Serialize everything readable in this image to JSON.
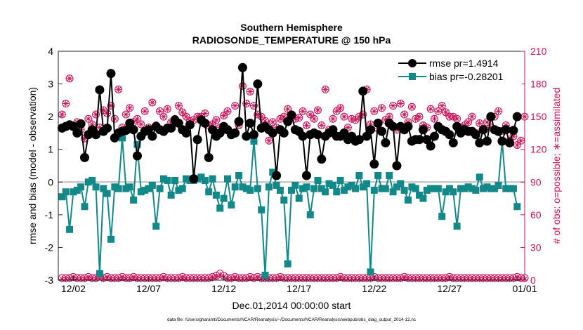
{
  "chart_data": {
    "type": "line",
    "title": "Southern Hemisphere",
    "subtitle": "RADIOSONDE_TEMPERATURE @ 150 hPa",
    "xlabel": "Dec.01,2014 00:00:00 start",
    "ylabel": "rmse and bias (model - observation)",
    "ylabel_right": "# of obs: o=possible; ∗=assimilated",
    "footnote": "data file: /Users/gharamti/Documents/NCAR/Reanalysis/~/Documents/NCAR/Reanalysis/webpub/obs_diag_output_2014-12.nc",
    "xlim": [
      1,
      32
    ],
    "ylim": [
      -3,
      4
    ],
    "ylim_right": [
      0,
      210
    ],
    "x_ticks": [
      {
        "value": 2,
        "label": "12/02"
      },
      {
        "value": 7,
        "label": "12/07"
      },
      {
        "value": 12,
        "label": "12/12"
      },
      {
        "value": 17,
        "label": "12/17"
      },
      {
        "value": 22,
        "label": "12/22"
      },
      {
        "value": 27,
        "label": "12/27"
      },
      {
        "value": 32,
        "label": "01/01"
      }
    ],
    "y_ticks": [
      -3,
      -2,
      -1,
      0,
      1,
      2,
      3,
      4
    ],
    "y_ticks_right": [
      0,
      30,
      60,
      90,
      120,
      150,
      180,
      210
    ],
    "colors": {
      "rmse": "#000000",
      "bias": "#138888",
      "obs": "#c8125a",
      "zero_line": "#bdbdbd",
      "axis_right": "#c8125a"
    },
    "series": [
      {
        "name": "rmse",
        "legend": "rmse pr=1.4914",
        "x_start": 1.25,
        "x_step": 0.25,
        "values": [
          1.65,
          1.7,
          1.75,
          1.7,
          1.5,
          1.78,
          0.75,
          1.45,
          1.6,
          1.45,
          2.82,
          1.55,
          1.65,
          3.32,
          1.35,
          1.5,
          1.55,
          1.58,
          1.8,
          1.6,
          0.8,
          1.4,
          1.55,
          1.6,
          1.4,
          1.7,
          1.6,
          1.55,
          1.65,
          1.65,
          1.9,
          1.8,
          1.6,
          1.5,
          1.75,
          0.1,
          1.3,
          1.9,
          1.8,
          0.75,
          1.6,
          1.4,
          1.5,
          1.7,
          1.6,
          1.45,
          1.5,
          1.85,
          3.5,
          1.4,
          1.8,
          1.45,
          3.0,
          1.65,
          1.7,
          1.6,
          1.5,
          0.2,
          1.6,
          1.5,
          1.85,
          2.05,
          1.6,
          1.55,
          1.4,
          0.2,
          1.45,
          1.5,
          1.45,
          0.7,
          1.4,
          1.5,
          1.6,
          1.4,
          1.4,
          1.5,
          1.3,
          1.4,
          1.25,
          1.3,
          2.78,
          1.4,
          1.6,
          0.55,
          1.8,
          1.55,
          1.2,
          1.8,
          1.7,
          0.5,
          1.7,
          1.6,
          1.7,
          1.25,
          1.3,
          1.3,
          1.6,
          1.3,
          1.1,
          1.4,
          1.7,
          1.6,
          1.55,
          1.45,
          1.2,
          1.7,
          1.5,
          1.6,
          1.55,
          1.55,
          1.45,
          1.2,
          1.6,
          1.25,
          2.0,
          1.6,
          1.55,
          1.25,
          1.6,
          1.2,
          1.58,
          2.0
        ]
      },
      {
        "name": "bias",
        "legend": "bias pr=-0.28201",
        "x_start": 1.25,
        "x_step": 0.25,
        "values": [
          -0.45,
          -0.3,
          -1.45,
          -0.3,
          -0.25,
          -0.15,
          -0.75,
          0.0,
          0.05,
          -0.15,
          -2.8,
          -0.2,
          -0.35,
          -1.75,
          -0.15,
          -0.2,
          1.35,
          -0.2,
          -0.15,
          -0.55,
          1.15,
          -0.3,
          -0.25,
          -0.2,
          -0.1,
          -1.35,
          -0.2,
          0.1,
          0.05,
          -0.4,
          0.05,
          -0.25,
          -0.2,
          0.1,
          0.05,
          0.05,
          0.1,
          0.15,
          0.05,
          -0.3,
          0.1,
          -0.4,
          -0.8,
          -0.5,
          0.1,
          -0.7,
          -0.15,
          0.2,
          -0.15,
          -0.2,
          -0.25,
          1.25,
          -0.2,
          -0.85,
          -2.85,
          -0.15,
          0.3,
          -0.1,
          -0.25,
          -0.55,
          -2.5,
          -0.25,
          -0.1,
          -0.5,
          -0.2,
          -0.15,
          -1.0,
          -0.2,
          0.05,
          -0.2,
          -0.3,
          -0.05,
          -0.1,
          -0.3,
          0.05,
          -0.25,
          -0.15,
          -0.1,
          -0.2,
          0.2,
          -0.15,
          -0.05,
          -2.75,
          -0.25,
          0.2,
          -0.2,
          -0.2,
          0.2,
          -0.3,
          -0.15,
          -0.05,
          -0.25,
          -0.55,
          -0.15,
          -0.2,
          -0.4,
          -0.5,
          -0.25,
          -0.2,
          -0.2,
          -0.2,
          -1.05,
          -0.3,
          -0.2,
          -0.3,
          -1.35,
          -0.2,
          -0.2,
          -0.15,
          -0.2,
          -0.25,
          0.15,
          -0.2,
          -0.15,
          -0.2,
          -0.2,
          -0.1,
          1.25,
          -0.2,
          -0.2,
          -0.2,
          -0.75
        ]
      },
      {
        "name": "obs_possible",
        "legend": "o=possible",
        "x_start": 1.25,
        "x_step": 0.25,
        "values": [
          2,
          2,
          2,
          3,
          2,
          2,
          2,
          3,
          2,
          2,
          4,
          2,
          3,
          2,
          2,
          2,
          3,
          2,
          2,
          3,
          2,
          2,
          2,
          2,
          2,
          2,
          2,
          3,
          2,
          2,
          2,
          2,
          3,
          2,
          2,
          2,
          2,
          2,
          2,
          2,
          3,
          4,
          6,
          4,
          2,
          2,
          3,
          2,
          2,
          2,
          3,
          2,
          3,
          2,
          2,
          2,
          2,
          2,
          3,
          2,
          2,
          2,
          2,
          2,
          2,
          2,
          2,
          2,
          2,
          2,
          2,
          2,
          2,
          2,
          3,
          2,
          2,
          2,
          2,
          2,
          2,
          2,
          2,
          3,
          2,
          2,
          2,
          2,
          2,
          2,
          2,
          3,
          2,
          2,
          2,
          2,
          2,
          2,
          2,
          2,
          2,
          2,
          2,
          3,
          2,
          2,
          2,
          2,
          2,
          2,
          2,
          2,
          2,
          2,
          2,
          2,
          2,
          2,
          2,
          2,
          2,
          3,
          2,
          2
        ]
      },
      {
        "name": "obs_assimilated",
        "legend": "∗=assimilated",
        "x_start": 1.25,
        "x_step": 0.25,
        "values": [
          1,
          1,
          1,
          2,
          1,
          1,
          1,
          2,
          1,
          1,
          3,
          1,
          2,
          1,
          1,
          1,
          2,
          1,
          1,
          2,
          1,
          1,
          1,
          1,
          1,
          1,
          1,
          2,
          1,
          1,
          1,
          1,
          2,
          1,
          1,
          1,
          1,
          1,
          1,
          1,
          2,
          3,
          5,
          3,
          1,
          1,
          2,
          1,
          1,
          1,
          2,
          1,
          2,
          1,
          1,
          1,
          1,
          1,
          2,
          1,
          1,
          1,
          1,
          1,
          1,
          1,
          1,
          1,
          1,
          1,
          1,
          1,
          1,
          1,
          2,
          1,
          1,
          1,
          1,
          1,
          1,
          1,
          1,
          2,
          1,
          1,
          1,
          1,
          1,
          1,
          1,
          2,
          1,
          1,
          1,
          1,
          1,
          1,
          1,
          1,
          1,
          1,
          1,
          2,
          1,
          1,
          1,
          1,
          1,
          1,
          1,
          1,
          1,
          1,
          1,
          1,
          1,
          1,
          1,
          1,
          1,
          2,
          1,
          1
        ]
      },
      {
        "name": "obs_count_upper",
        "legend": "",
        "x_start": 1.25,
        "x_step": 0.25,
        "values": [
          152,
          162,
          185,
          142,
          145,
          138,
          130,
          148,
          143,
          152,
          140,
          156,
          153,
          160,
          148,
          175,
          140,
          152,
          158,
          145,
          148,
          143,
          155,
          140,
          163,
          142,
          155,
          150,
          157,
          145,
          148,
          160,
          154,
          150,
          146,
          147,
          150,
          150,
          153,
          142,
          143,
          147,
          140,
          151,
          155,
          133,
          160,
          142,
          178,
          162,
          173,
          160,
          152,
          150,
          146,
          128,
          145,
          140,
          148,
          150,
          157,
          152,
          148,
          149,
          155,
          142,
          152,
          148,
          156,
          142,
          175,
          138,
          148,
          155,
          158,
          150,
          140,
          148,
          147,
          150,
          152,
          175,
          143,
          155,
          139,
          158,
          147,
          150,
          160,
          138,
          162,
          152,
          145,
          159,
          148,
          150,
          142,
          140,
          157,
          148,
          155,
          160,
          154,
          150,
          150,
          148,
          140,
          142,
          145,
          150,
          135,
          144,
          139,
          145,
          140,
          150,
          155,
          137,
          142,
          128,
          132,
          124,
          128,
          150
        ]
      }
    ]
  }
}
